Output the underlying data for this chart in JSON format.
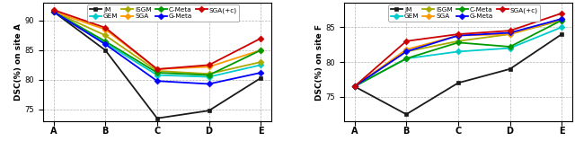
{
  "left": {
    "title": "DSC(%) on site A",
    "xlabel_categories": [
      "A",
      "B",
      "C",
      "D",
      "E"
    ],
    "ylim": [
      73.0,
      93.0
    ],
    "yticks": [
      75,
      80,
      85,
      90
    ],
    "series": {
      "JM": {
        "color": "#1a1a1a",
        "marker": "s",
        "values": [
          91.5,
          85.0,
          73.5,
          74.8,
          80.3
        ]
      },
      "GEM": {
        "color": "#00cccc",
        "marker": "D",
        "values": [
          91.5,
          86.2,
          80.8,
          80.5,
          82.5
        ]
      },
      "ISGM": {
        "color": "#aaaa00",
        "marker": "D",
        "values": [
          91.5,
          87.5,
          81.5,
          81.0,
          83.0
        ]
      },
      "SGA": {
        "color": "#ff9900",
        "marker": "D",
        "values": [
          91.5,
          88.5,
          81.8,
          82.2,
          85.0
        ]
      },
      "C-Meta": {
        "color": "#009900",
        "marker": "D",
        "values": [
          91.5,
          86.5,
          81.2,
          80.8,
          85.0
        ]
      },
      "G-Meta": {
        "color": "#0000ff",
        "marker": "D",
        "values": [
          91.5,
          86.0,
          79.8,
          79.3,
          81.2
        ]
      },
      "SGA(+c)": {
        "color": "#cc0000",
        "marker": "D",
        "values": [
          91.8,
          88.8,
          81.8,
          82.5,
          87.0
        ]
      }
    }
  },
  "right": {
    "title": "DSC(%) on site F",
    "xlabel_categories": [
      "A",
      "B",
      "C",
      "D",
      "E"
    ],
    "ylim": [
      71.5,
      88.5
    ],
    "yticks": [
      75,
      80,
      85
    ],
    "series": {
      "JM": {
        "color": "#1a1a1a",
        "marker": "s",
        "values": [
          76.5,
          72.5,
          77.0,
          79.0,
          84.0
        ]
      },
      "GEM": {
        "color": "#00cccc",
        "marker": "D",
        "values": [
          76.5,
          80.5,
          81.5,
          82.0,
          85.0
        ]
      },
      "ISGM": {
        "color": "#aaaa00",
        "marker": "D",
        "values": [
          76.5,
          81.5,
          83.0,
          84.0,
          86.0
        ]
      },
      "SGA": {
        "color": "#ff9900",
        "marker": "D",
        "values": [
          76.5,
          81.8,
          83.8,
          84.0,
          86.2
        ]
      },
      "C-Meta": {
        "color": "#009900",
        "marker": "D",
        "values": [
          76.5,
          80.5,
          82.8,
          82.2,
          86.0
        ]
      },
      "G-Meta": {
        "color": "#0000ff",
        "marker": "D",
        "values": [
          76.5,
          81.5,
          83.8,
          84.2,
          86.2
        ]
      },
      "SGA(+c)": {
        "color": "#cc0000",
        "marker": "D",
        "values": [
          76.5,
          83.0,
          84.0,
          84.5,
          87.0
        ]
      }
    }
  },
  "legend_order": [
    "JM",
    "GEM",
    "ISGM",
    "SGA",
    "C-Meta",
    "G-Meta",
    "SGA(+c)"
  ],
  "linewidth": 1.3,
  "markersize": 3.5
}
